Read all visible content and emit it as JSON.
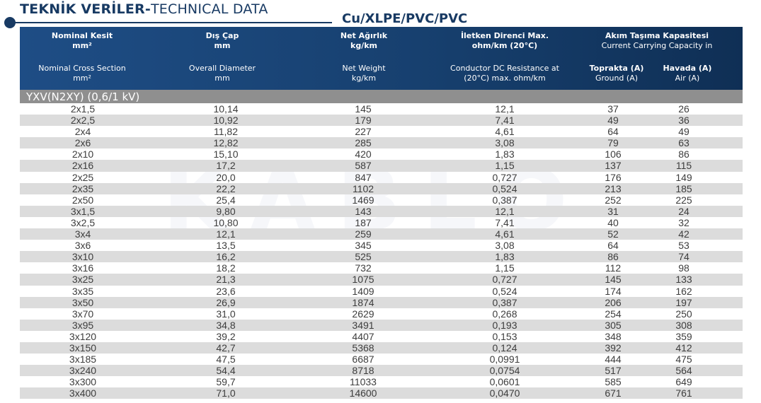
{
  "page": {
    "title_bold": "TEKNİK VERİLER-",
    "title_regular": "TECHNICAL DATA",
    "subtitle": "Cu/XLPE/PVC/PVC",
    "watermark": "KABLO"
  },
  "header": {
    "col1": {
      "tr": "Nominal Kesit",
      "tr_unit": "mm²",
      "en": "Nominal Cross Section",
      "en_unit": "mm²"
    },
    "col2": {
      "tr": "Dış Çap",
      "tr_unit": "mm",
      "en": "Overall Diameter",
      "en_unit": "mm"
    },
    "col3": {
      "tr": "Net Ağırlık",
      "tr_unit": "kg/km",
      "en": "Net Weight",
      "en_unit": "kg/km"
    },
    "col4": {
      "tr": "İletken Direnci Max.",
      "tr_unit": "ohm/km (20°C)",
      "en": "Conductor DC Resistance at",
      "en_unit": "(20°C) max. ohm/km"
    },
    "col5": {
      "tr": "Akım Taşıma Kapasitesi",
      "en": "Current Carrying Capacity in",
      "ground_tr": "Toprakta (A)",
      "ground_en": "Ground (A)",
      "air_tr": "Havada (A)",
      "air_en": "Air (A)"
    }
  },
  "section": {
    "label": "YXV(N2XY) (0,6/1 kV)"
  },
  "rows": [
    [
      "2x1,5",
      "10,14",
      "145",
      "12,1",
      "37",
      "26"
    ],
    [
      "2x2,5",
      "10,92",
      "179",
      "7,41",
      "49",
      "36"
    ],
    [
      "2x4",
      "11,82",
      "227",
      "4,61",
      "64",
      "49"
    ],
    [
      "2x6",
      "12,82",
      "285",
      "3,08",
      "79",
      "63"
    ],
    [
      "2x10",
      "15,10",
      "420",
      "1,83",
      "106",
      "86"
    ],
    [
      "2x16",
      "17,2",
      "587",
      "1,15",
      "137",
      "115"
    ],
    [
      "2x25",
      "20,0",
      "847",
      "0,727",
      "176",
      "149"
    ],
    [
      "2x35",
      "22,2",
      "1102",
      "0,524",
      "213",
      "185"
    ],
    [
      "2x50",
      "25,4",
      "1469",
      "0,387",
      "252",
      "225"
    ],
    [
      "3x1,5",
      "9,80",
      "143",
      "12,1",
      "31",
      "24"
    ],
    [
      "3x2,5",
      "10,80",
      "187",
      "7,41",
      "40",
      "32"
    ],
    [
      "3x4",
      "12,1",
      "259",
      "4,61",
      "52",
      "42"
    ],
    [
      "3x6",
      "13,5",
      "345",
      "3,08",
      "64",
      "53"
    ],
    [
      "3x10",
      "16,2",
      "525",
      "1,83",
      "86",
      "74"
    ],
    [
      "3x16",
      "18,2",
      "732",
      "1,15",
      "112",
      "98"
    ],
    [
      "3x25",
      "21,3",
      "1075",
      "0,727",
      "145",
      "133"
    ],
    [
      "3x35",
      "23,6",
      "1409",
      "0,524",
      "174",
      "162"
    ],
    [
      "3x50",
      "26,9",
      "1874",
      "0,387",
      "206",
      "197"
    ],
    [
      "3x70",
      "31,0",
      "2629",
      "0,268",
      "254",
      "250"
    ],
    [
      "3x95",
      "34,8",
      "3491",
      "0,193",
      "305",
      "308"
    ],
    [
      "3x120",
      "39,2",
      "4407",
      "0,153",
      "348",
      "359"
    ],
    [
      "3x150",
      "42,7",
      "5368",
      "0,124",
      "392",
      "412"
    ],
    [
      "3x185",
      "47,5",
      "6687",
      "0,0991",
      "444",
      "475"
    ],
    [
      "3x240",
      "54,4",
      "8718",
      "0,0754",
      "517",
      "564"
    ],
    [
      "3x300",
      "59,7",
      "11033",
      "0,0601",
      "585",
      "649"
    ],
    [
      "3x400",
      "71,0",
      "14600",
      "0,0470",
      "671",
      "761"
    ]
  ]
}
